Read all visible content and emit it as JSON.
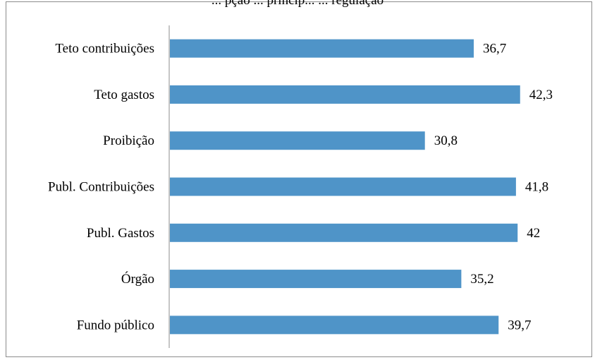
{
  "chart_data": {
    "type": "bar",
    "orientation": "horizontal",
    "title": "... pção ... princip... ... regulação",
    "categories": [
      "Teto contribuições",
      "Teto gastos",
      "Proibição",
      "Publ. Contribuições",
      "Publ. Gastos",
      "Órgão",
      "Fundo público"
    ],
    "values": [
      36.7,
      42.3,
      30.8,
      41.8,
      42,
      35.2,
      39.7
    ],
    "value_labels": [
      "36,7",
      "42,3",
      "30,8",
      "41,8",
      "42",
      "35,2",
      "39,7"
    ],
    "xlim": [
      0,
      45
    ],
    "grid": false,
    "legend": "none",
    "bar_color": "#4f94c8",
    "axis_color": "#8c8c8c"
  }
}
